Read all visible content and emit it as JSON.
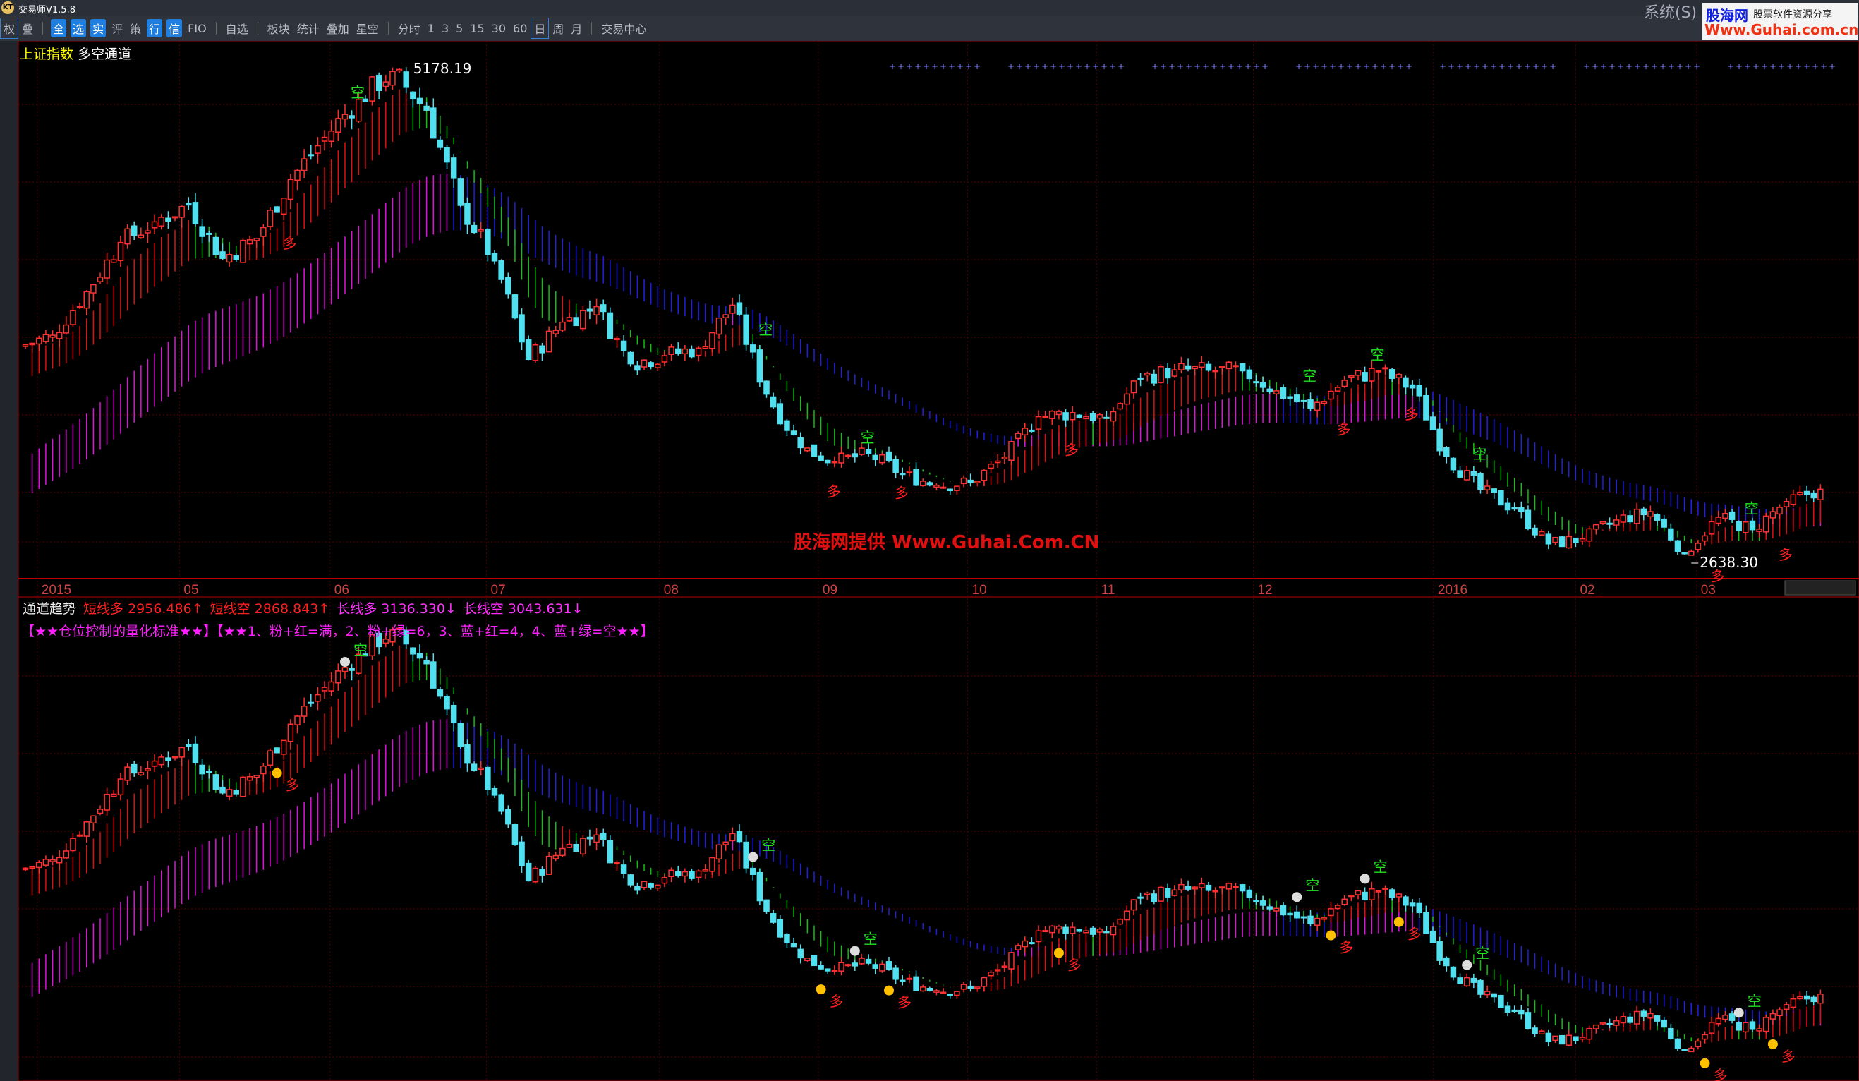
{
  "app": {
    "title": "交易师V1.5.8",
    "logo_text": "KT",
    "menu_system": "系统(S)"
  },
  "brand": {
    "name": "股海网",
    "tagline": "股票软件资源分享",
    "url": "Www.Guhai.com.cn"
  },
  "toolbar": {
    "items": [
      "权",
      "叠",
      "全",
      "选",
      "实",
      "评",
      "策",
      "行",
      "信",
      "FIO",
      "自选",
      "板块",
      "统计",
      "叠加",
      "星空",
      "分时",
      "1",
      "3",
      "5",
      "15",
      "30",
      "60",
      "日",
      "周",
      "月",
      "交易中心"
    ],
    "selected_period": "日"
  },
  "upper_panel": {
    "symbol": "上证指数",
    "indicator": "多空通道",
    "high_label": "5178.19",
    "low_label": "2638.30",
    "watermark": "股海网提供 Www.Guhai.Com.CN"
  },
  "lower_panel": {
    "indicator": "通道趋势",
    "values": [
      {
        "label": "短线多",
        "value": "2956.486↑",
        "color": "#ff2020"
      },
      {
        "label": "短线空",
        "value": "2868.843↑",
        "color": "#ff2020"
      },
      {
        "label": "长线多",
        "value": "3136.330↓",
        "color": "#ff30ff"
      },
      {
        "label": "长线空",
        "value": "3043.631↓",
        "color": "#ff30ff"
      }
    ],
    "legend": "【★★仓位控制的量化标准★★】【★★1、粉+红=满，2、粉+绿=6，3、蓝+红=4，4、蓝+绿=空★★】"
  },
  "chart_data": {
    "type": "candlestick",
    "x_labels": [
      "2015",
      "05",
      "06",
      "07",
      "08",
      "09",
      "10",
      "11",
      "12",
      "2016",
      "02",
      "03"
    ],
    "weekly_close": [
      3810,
      4034,
      4287,
      4393,
      4480,
      4205,
      4308,
      4611,
      4828,
      5023,
      5166,
      4967,
      4478,
      4192,
      3686,
      3877,
      3957,
      3663,
      3705,
      3744,
      3965,
      3507,
      3232,
      3160,
      3200,
      3097,
      3038,
      3052,
      3183,
      3391,
      3412,
      3382,
      3590,
      3632,
      3630,
      3627,
      3524,
      3434,
      3578,
      3627,
      3539,
      3186,
      3017,
      2916,
      2737,
      2763,
      2860,
      2903,
      2687,
      2874,
      2810,
      2955,
      3018
    ],
    "y_range": [
      2638.3,
      5178.19
    ],
    "signals": [
      {
        "week": 7,
        "type": "多"
      },
      {
        "week": 9,
        "type": "空"
      },
      {
        "week": 21,
        "type": "空"
      },
      {
        "week": 24,
        "type": "空"
      },
      {
        "week": 23,
        "type": "多"
      },
      {
        "week": 25,
        "type": "多"
      },
      {
        "week": 30,
        "type": "多"
      },
      {
        "week": 37,
        "type": "空"
      },
      {
        "week": 38,
        "type": "多"
      },
      {
        "week": 39,
        "type": "空"
      },
      {
        "week": 40,
        "type": "多"
      },
      {
        "week": 42,
        "type": "空"
      },
      {
        "week": 50,
        "type": "空"
      },
      {
        "week": 49,
        "type": "多"
      },
      {
        "week": 51,
        "type": "多"
      }
    ],
    "colors": {
      "up": "#ff3030",
      "down": "#50e0f0",
      "short_up": "#e01010",
      "short_down": "#10c010",
      "long_up": "#e010e0",
      "long_down": "#2020e0"
    }
  }
}
